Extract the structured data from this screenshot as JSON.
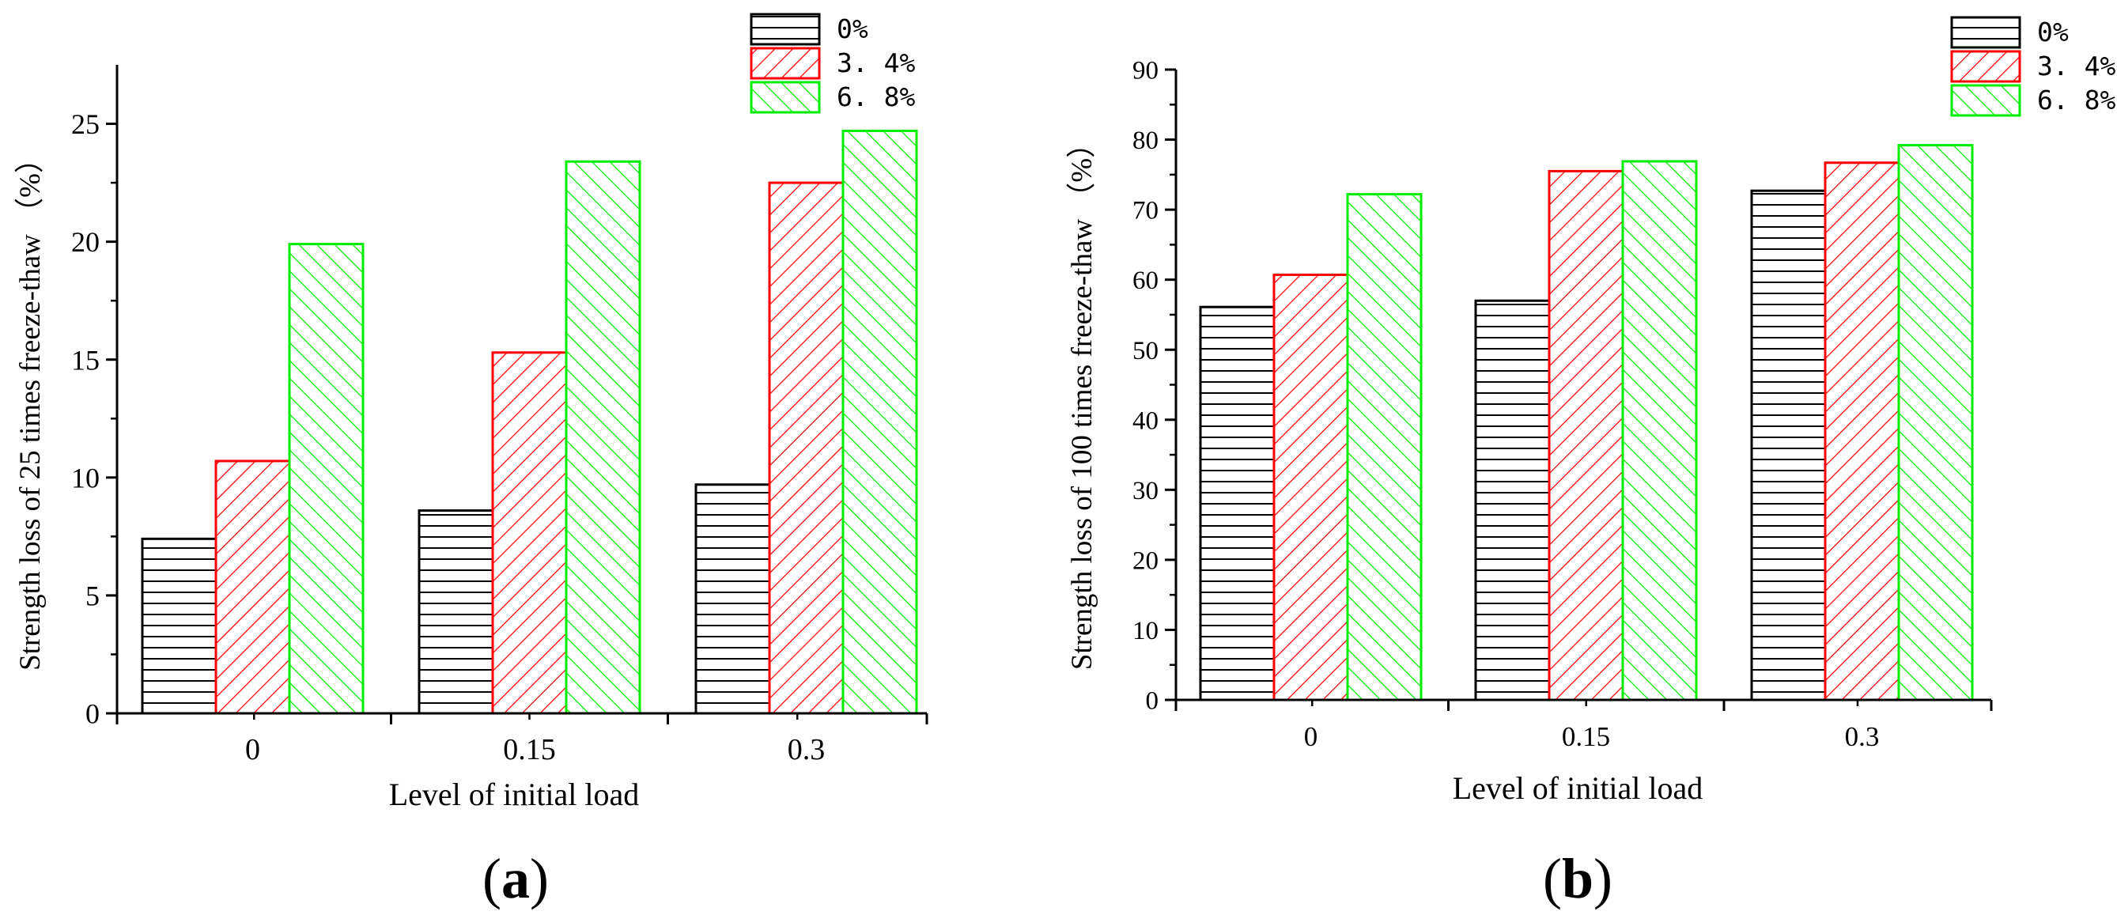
{
  "figure": {
    "panels": [
      {
        "label_open": "(",
        "label_letter": "a",
        "label_close": ")"
      },
      {
        "label_open": "(",
        "label_letter": "b",
        "label_close": ")"
      }
    ]
  },
  "colors": {
    "series_0": "#000000",
    "series_1": "#ff0000",
    "series_2": "#00ee00",
    "axis": "#000000",
    "background": "#ffffff"
  },
  "chart_data": [
    {
      "type": "bar",
      "categories": [
        "0",
        "0.15",
        "0.3"
      ],
      "series": [
        {
          "name": "0%",
          "pattern": "horizontal",
          "values": [
            7.4,
            8.6,
            9.7
          ]
        },
        {
          "name": "3. 4%",
          "pattern": "forward-diagonal",
          "values": [
            10.7,
            15.3,
            22.5
          ]
        },
        {
          "name": "6. 8%",
          "pattern": "back-diagonal",
          "values": [
            19.9,
            23.4,
            24.7
          ]
        }
      ],
      "title": "",
      "xlabel": "Level of initial load",
      "ylabel": "Strength loss of 25 times freeze-thaw （%）",
      "ylim": [
        0,
        27.5
      ],
      "yticks": [
        0,
        5,
        10,
        15,
        20,
        25
      ],
      "ytick_labels": [
        "0",
        "5",
        "10",
        "15",
        "20",
        "25"
      ],
      "legend": "top-right",
      "grid": false
    },
    {
      "type": "bar",
      "categories": [
        "0",
        "0.15",
        "0.3"
      ],
      "series": [
        {
          "name": "0%",
          "pattern": "horizontal",
          "values": [
            56.1,
            57.0,
            72.7
          ]
        },
        {
          "name": "3. 4%",
          "pattern": "forward-diagonal",
          "values": [
            60.7,
            75.5,
            76.7
          ]
        },
        {
          "name": "6. 8%",
          "pattern": "back-diagonal",
          "values": [
            72.2,
            76.9,
            79.2
          ]
        }
      ],
      "title": "",
      "xlabel": "Level of initial load",
      "ylabel": "Strength loss of 100 times freeze-thaw （%）",
      "ylim": [
        0,
        90
      ],
      "yticks": [
        0,
        10,
        20,
        30,
        40,
        50,
        60,
        70,
        80,
        90
      ],
      "ytick_labels": [
        "0",
        "10",
        "20",
        "30",
        "40",
        "50",
        "60",
        "70",
        "80",
        "90"
      ],
      "legend": "top-right",
      "grid": false
    }
  ]
}
